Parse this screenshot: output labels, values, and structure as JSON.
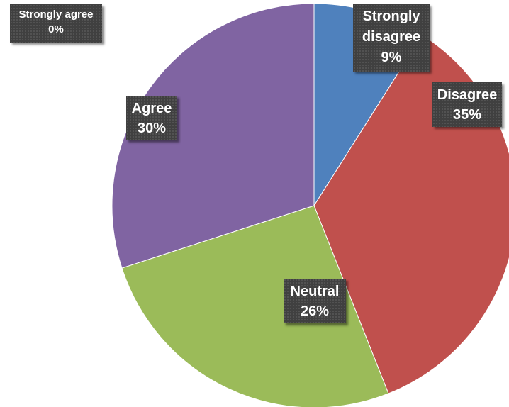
{
  "chart_data": {
    "type": "pie",
    "title": "",
    "slices": [
      {
        "label": "Strongly disagree",
        "label_lines": [
          "Strongly",
          "disagree"
        ],
        "percent_label": "9%",
        "value": 9,
        "color": "#4F81BD"
      },
      {
        "label": "Disagree",
        "label_lines": [
          "Disagree"
        ],
        "percent_label": "35%",
        "value": 35,
        "color": "#C0504D"
      },
      {
        "label": "Neutral",
        "label_lines": [
          "Neutral"
        ],
        "percent_label": "26%",
        "value": 26,
        "color": "#9BBB59"
      },
      {
        "label": "Agree",
        "label_lines": [
          "Agree"
        ],
        "percent_label": "30%",
        "value": 30,
        "color": "#8064A2"
      },
      {
        "label": "Strongly agree",
        "label_lines": [
          "Strongly agree"
        ],
        "percent_label": "0%",
        "value": 0,
        "color": "#4BACC6"
      }
    ],
    "start_angle": "12 o'clock",
    "direction": "clockwise",
    "legend": "none",
    "data_labels": "category name and percentage"
  }
}
